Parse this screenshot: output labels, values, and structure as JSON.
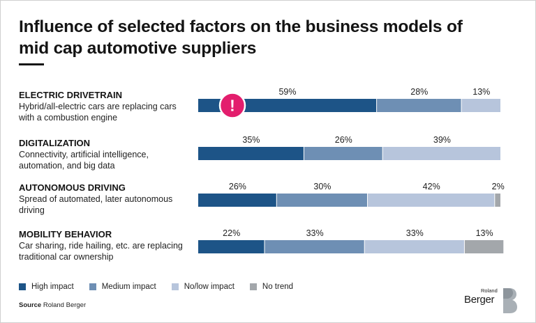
{
  "title": "Influence of selected factors on the business models of mid cap automotive suppliers",
  "chart_data": {
    "type": "bar",
    "orientation": "horizontal-stacked-100",
    "categories": [
      {
        "name": "ELECTRIC DRIVETRAIN",
        "description": "Hybrid/all-electric cars are replacing cars with a combustion engine",
        "alert": "!"
      },
      {
        "name": "DIGITALIZATION",
        "description": "Connectivity, artificial intelligence, automation, and big data"
      },
      {
        "name": "AUTONOMOUS DRIVING",
        "description": "Spread of automated, later autonomous driving"
      },
      {
        "name": "MOBILITY BEHAVIOR",
        "description": "Car sharing, ride hailing, etc. are replacing traditional car ownership"
      }
    ],
    "series": [
      {
        "name": "High impact",
        "color": "#1d5487",
        "values": [
          59,
          35,
          26,
          22
        ]
      },
      {
        "name": "Medium impact",
        "color": "#6e8fb4",
        "values": [
          28,
          26,
          30,
          33
        ]
      },
      {
        "name": "No/low impact",
        "color": "#b7c5dc",
        "values": [
          13,
          39,
          42,
          33
        ]
      },
      {
        "name": "No trend",
        "color": "#a3a7ab",
        "values": [
          0,
          0,
          2,
          13
        ]
      }
    ],
    "value_suffix": "%",
    "legend": "bottom",
    "grid": false,
    "alert_color": "#e31e6d"
  },
  "source": {
    "label": "Source",
    "text": "Roland Berger"
  },
  "logo": {
    "small": "Roland",
    "big": "Berger"
  }
}
